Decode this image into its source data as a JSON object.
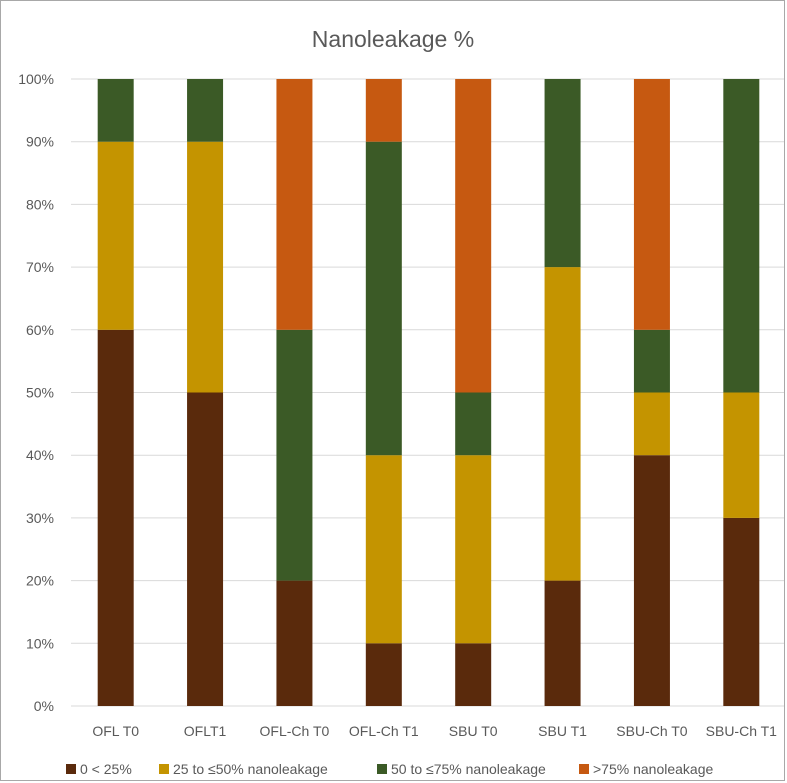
{
  "chart_data": {
    "type": "bar",
    "stacked": true,
    "title": "Nanoleakage %",
    "xlabel": "",
    "ylabel": "",
    "ylim": [
      0,
      100
    ],
    "yticks": [
      "0%",
      "10%",
      "20%",
      "30%",
      "40%",
      "50%",
      "60%",
      "70%",
      "80%",
      "90%",
      "100%"
    ],
    "grid": true,
    "legend_position": "bottom",
    "categories": [
      "OFL T0",
      "OFLT1",
      "OFL-Ch T0",
      "OFL-Ch T1",
      "SBU T0",
      "SBU T1",
      "SBU-Ch T0",
      "SBU-Ch T1"
    ],
    "series": [
      {
        "name": "0 < 25%",
        "color": "#5a2a0c",
        "values": [
          60,
          50,
          20,
          10,
          10,
          20,
          40,
          30
        ]
      },
      {
        "name": "25 to ≤50% nanoleakage",
        "color": "#c49400",
        "values": [
          30,
          40,
          0,
          30,
          30,
          50,
          10,
          20
        ]
      },
      {
        "name": "50 to ≤75% nanoleakage",
        "color": "#3b5a26",
        "values": [
          10,
          10,
          40,
          50,
          10,
          30,
          10,
          50
        ]
      },
      {
        "name": ">75% nanoleakage",
        "color": "#c65911",
        "values": [
          0,
          0,
          40,
          10,
          50,
          0,
          40,
          0
        ]
      }
    ]
  }
}
